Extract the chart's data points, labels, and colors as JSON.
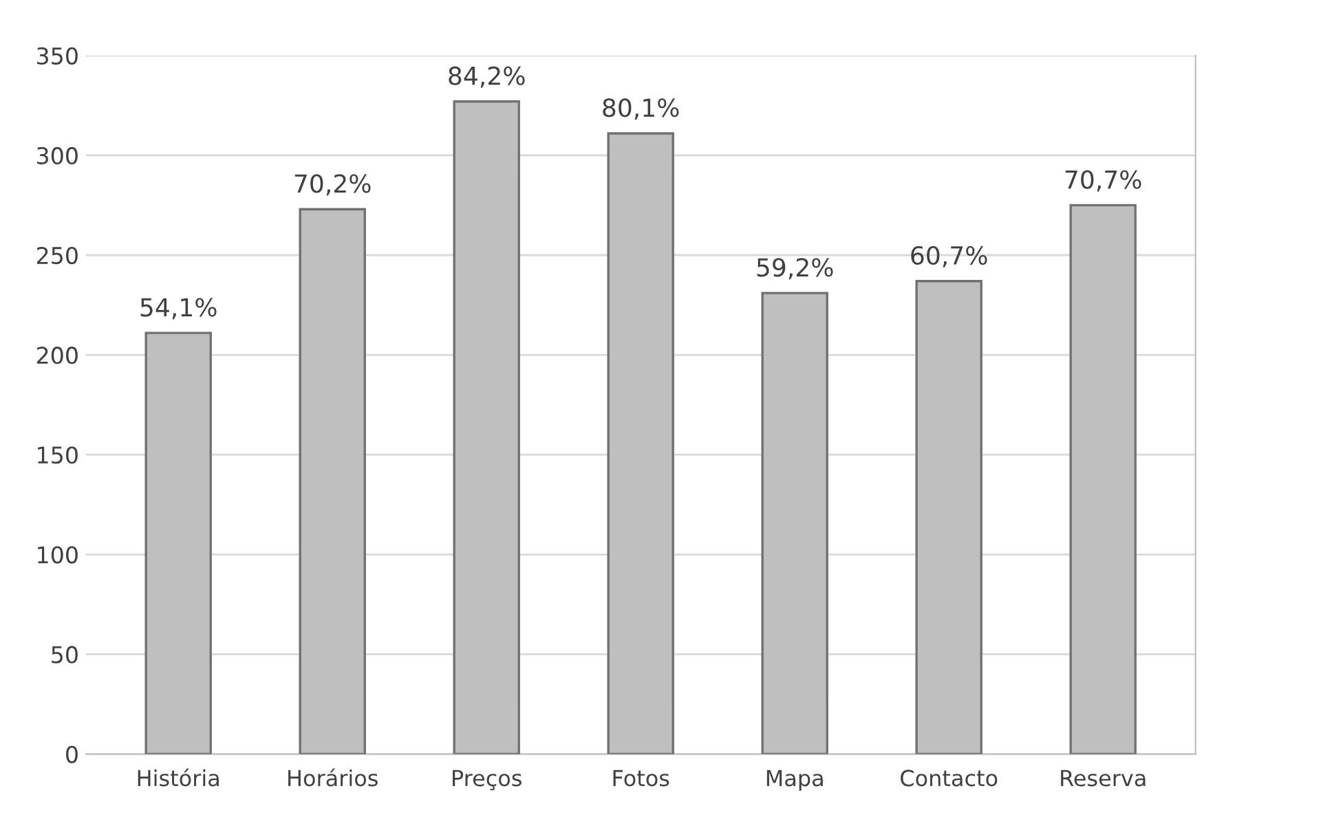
{
  "chart_data": {
    "type": "bar",
    "categories": [
      "História",
      "Horários",
      "Preços",
      "Fotos",
      "Mapa",
      "Contacto",
      "Reserva"
    ],
    "values": [
      211,
      273,
      327,
      311,
      231,
      237,
      275
    ],
    "annotations": [
      {
        "text": "54,1%",
        "x": "História",
        "y": 211
      },
      {
        "text": "70,2%",
        "x": "Horários",
        "y": 273
      },
      {
        "text": "84,2%",
        "x": "Preços",
        "y": 327
      },
      {
        "text": "80,1%",
        "x": "Fotos",
        "y": 311
      },
      {
        "text": "59,2%",
        "x": "Mapa",
        "y": 231
      },
      {
        "text": "60,7%",
        "x": "Contacto",
        "y": 237
      },
      {
        "text": "70,7%",
        "x": "Reserva",
        "y": 275
      }
    ],
    "color": "#bfbfbf",
    "ylim": [
      0,
      350
    ],
    "yticks": [
      0,
      50,
      100,
      150,
      200,
      250,
      300,
      350
    ],
    "grid": "y",
    "legend": false
  }
}
